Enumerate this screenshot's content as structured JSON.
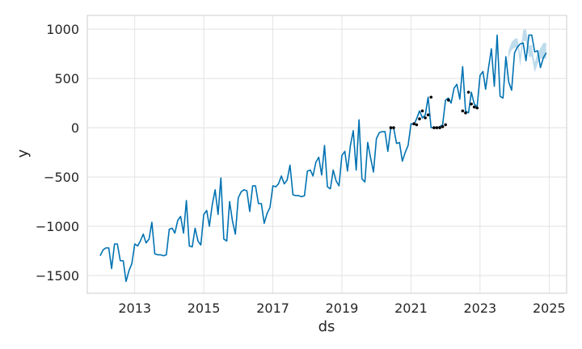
{
  "chart_data": {
    "type": "line",
    "title": "",
    "xlabel": "ds",
    "ylabel": "y",
    "xlim": [
      "2011-08-18",
      "2025-07-05"
    ],
    "ylim": [
      -1680,
      1140
    ],
    "grid": true,
    "x_ticks": [
      "2013",
      "2015",
      "2017",
      "2019",
      "2021",
      "2023",
      "2025"
    ],
    "y_ticks": [
      1000,
      500,
      0,
      -500,
      -1000,
      -1500
    ],
    "y_tick_labels": [
      "1000",
      "500",
      "0",
      "−500",
      "−1000",
      "−1500"
    ],
    "colors": {
      "line": "#0072B2",
      "band": "#0072B2",
      "points": "#000000",
      "grid": "#dddddd",
      "frame": "#cccccc"
    },
    "series": [
      {
        "type": "line",
        "x": [
          "2012-01-01",
          "2012-02-01",
          "2012-03-01",
          "2012-04-01",
          "2012-05-01",
          "2012-06-01",
          "2012-07-01",
          "2012-08-01",
          "2012-09-01",
          "2012-10-01",
          "2012-11-01",
          "2012-12-01",
          "2013-01-01",
          "2013-02-01",
          "2013-03-01",
          "2013-04-01",
          "2013-05-01",
          "2013-06-01",
          "2013-07-01",
          "2013-08-01",
          "2013-09-01",
          "2013-10-01",
          "2013-11-01",
          "2013-12-01",
          "2014-01-01",
          "2014-02-01",
          "2014-03-01",
          "2014-04-01",
          "2014-05-01",
          "2014-06-01",
          "2014-07-01",
          "2014-08-01",
          "2014-09-01",
          "2014-10-01",
          "2014-11-01",
          "2014-12-01",
          "2015-01-01",
          "2015-02-01",
          "2015-03-01",
          "2015-04-01",
          "2015-05-01",
          "2015-06-01",
          "2015-07-01",
          "2015-08-01",
          "2015-09-01",
          "2015-10-01",
          "2015-11-01",
          "2015-12-01",
          "2016-01-01",
          "2016-02-01",
          "2016-03-01",
          "2016-04-01",
          "2016-05-01",
          "2016-06-01",
          "2016-07-01",
          "2016-08-01",
          "2016-09-01",
          "2016-10-01",
          "2016-11-01",
          "2016-12-01",
          "2017-01-01",
          "2017-02-01",
          "2017-03-01",
          "2017-04-01",
          "2017-05-01",
          "2017-06-01",
          "2017-07-01",
          "2017-08-01",
          "2017-09-01",
          "2017-10-01",
          "2017-11-01",
          "2017-12-01",
          "2018-01-01",
          "2018-02-01",
          "2018-03-01",
          "2018-04-01",
          "2018-05-01",
          "2018-06-01",
          "2018-07-01",
          "2018-08-01",
          "2018-09-01",
          "2018-10-01",
          "2018-11-01",
          "2018-12-01",
          "2019-01-01",
          "2019-02-01",
          "2019-03-01",
          "2019-04-01",
          "2019-05-01",
          "2019-06-01",
          "2019-07-01",
          "2019-08-01",
          "2019-09-01",
          "2019-10-01",
          "2019-11-01",
          "2019-12-01",
          "2020-01-01",
          "2020-02-01",
          "2020-03-01",
          "2020-04-01",
          "2020-05-01",
          "2020-06-01",
          "2020-07-01",
          "2020-08-01",
          "2020-09-01",
          "2020-10-01",
          "2020-11-01",
          "2020-12-01",
          "2021-01-01",
          "2021-02-01",
          "2021-03-01",
          "2021-04-01",
          "2021-05-01",
          "2021-06-01",
          "2021-07-01",
          "2021-08-01",
          "2021-09-01",
          "2021-10-01",
          "2021-11-01",
          "2021-12-01",
          "2022-01-01",
          "2022-02-01",
          "2022-03-01",
          "2022-04-01",
          "2022-05-01",
          "2022-06-01",
          "2022-07-01",
          "2022-08-01",
          "2022-09-01",
          "2022-10-01",
          "2022-11-01",
          "2022-12-01",
          "2023-01-01",
          "2023-02-01",
          "2023-03-01",
          "2023-04-01",
          "2023-05-01",
          "2023-06-01",
          "2023-07-01",
          "2023-08-01",
          "2023-09-01",
          "2023-10-01",
          "2023-11-01",
          "2023-12-01",
          "2024-01-01",
          "2024-02-01",
          "2024-03-01",
          "2024-04-01",
          "2024-05-01",
          "2024-06-01",
          "2024-07-01",
          "2024-08-01",
          "2024-09-01",
          "2024-10-01",
          "2024-11-01",
          "2024-12-01"
        ],
        "y": [
          -1300,
          -1240,
          -1220,
          -1220,
          -1430,
          -1180,
          -1180,
          -1350,
          -1350,
          -1560,
          -1450,
          -1380,
          -1180,
          -1200,
          -1150,
          -1080,
          -1170,
          -1130,
          -960,
          -1280,
          -1290,
          -1290,
          -1300,
          -1290,
          -1030,
          -1020,
          -1070,
          -940,
          -900,
          -1070,
          -740,
          -1200,
          -1210,
          -1020,
          -1150,
          -1190,
          -880,
          -840,
          -1000,
          -780,
          -630,
          -880,
          -510,
          -1130,
          -1150,
          -750,
          -950,
          -1080,
          -710,
          -650,
          -630,
          -640,
          -850,
          -590,
          -590,
          -770,
          -770,
          -970,
          -870,
          -810,
          -590,
          -600,
          -570,
          -490,
          -570,
          -530,
          -380,
          -680,
          -690,
          -690,
          -700,
          -690,
          -440,
          -430,
          -490,
          -350,
          -300,
          -480,
          -180,
          -600,
          -620,
          -430,
          -540,
          -590,
          -280,
          -240,
          -440,
          -180,
          -30,
          -430,
          80,
          -520,
          -550,
          -150,
          -310,
          -450,
          -110,
          -50,
          -40,
          -40,
          -240,
          0,
          0,
          -160,
          -150,
          -340,
          -250,
          -180,
          40,
          30,
          90,
          170,
          100,
          130,
          310,
          0,
          0,
          0,
          10,
          30,
          280,
          300,
          250,
          400,
          440,
          290,
          620,
          170,
          150,
          360,
          240,
          210,
          530,
          570,
          390,
          610,
          800,
          420,
          940,
          320,
          300,
          720,
          460,
          380,
          760,
          820,
          850,
          860,
          680,
          940,
          940,
          770,
          780,
          610,
          710,
          760
        ]
      },
      {
        "type": "band",
        "x": [
          "2023-10-01",
          "2023-11-01",
          "2023-12-01",
          "2024-01-01",
          "2024-02-01",
          "2024-03-01",
          "2024-04-01",
          "2024-05-01",
          "2024-06-01",
          "2024-07-01",
          "2024-08-01",
          "2024-09-01",
          "2024-10-01",
          "2024-11-01",
          "2024-12-01"
        ],
        "lower": [
          440,
          720,
          790,
          810,
          820,
          620,
          880,
          880,
          720,
          720,
          560,
          650,
          700,
          700,
          700
        ],
        "upper": [
          480,
          790,
          870,
          900,
          910,
          740,
          990,
          1000,
          830,
          840,
          660,
          760,
          810,
          860,
          860
        ]
      },
      {
        "type": "points",
        "x": [
          "2020-06-01",
          "2020-07-01",
          "2021-02-01",
          "2021-03-01",
          "2021-04-01",
          "2021-05-01",
          "2021-06-01",
          "2021-07-01",
          "2021-08-01",
          "2021-09-01",
          "2021-10-01",
          "2021-11-01",
          "2021-12-01",
          "2022-01-01",
          "2022-02-01",
          "2022-07-01",
          "2022-08-01",
          "2022-09-01",
          "2022-10-01",
          "2022-11-01",
          "2022-12-01"
        ],
        "y": [
          0,
          0,
          40,
          30,
          90,
          170,
          100,
          130,
          310,
          0,
          0,
          0,
          10,
          30,
          280,
          170,
          150,
          360,
          240,
          210,
          200
        ]
      }
    ]
  }
}
